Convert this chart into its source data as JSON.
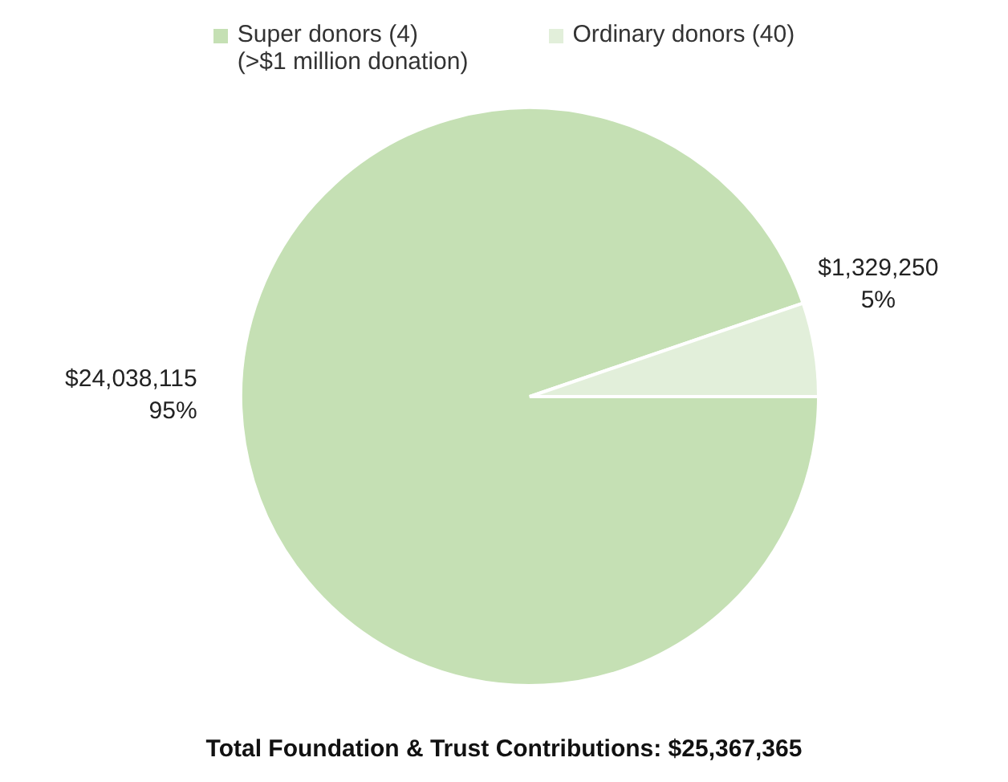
{
  "chart_data": {
    "type": "pie",
    "categories": [
      "Super donors (4)\n(>$1 million donation)",
      "Ordinary donors (40)"
    ],
    "values": [
      24038115,
      1329250
    ],
    "colors": [
      "#c5e0b4",
      "#e2efda"
    ],
    "value_labels": [
      "$24,038,115\n95%",
      "$1,329,250\n5%"
    ],
    "legend": "top",
    "annotations": [
      "Total Foundation & Trust Contributions: $25,367,365"
    ]
  }
}
